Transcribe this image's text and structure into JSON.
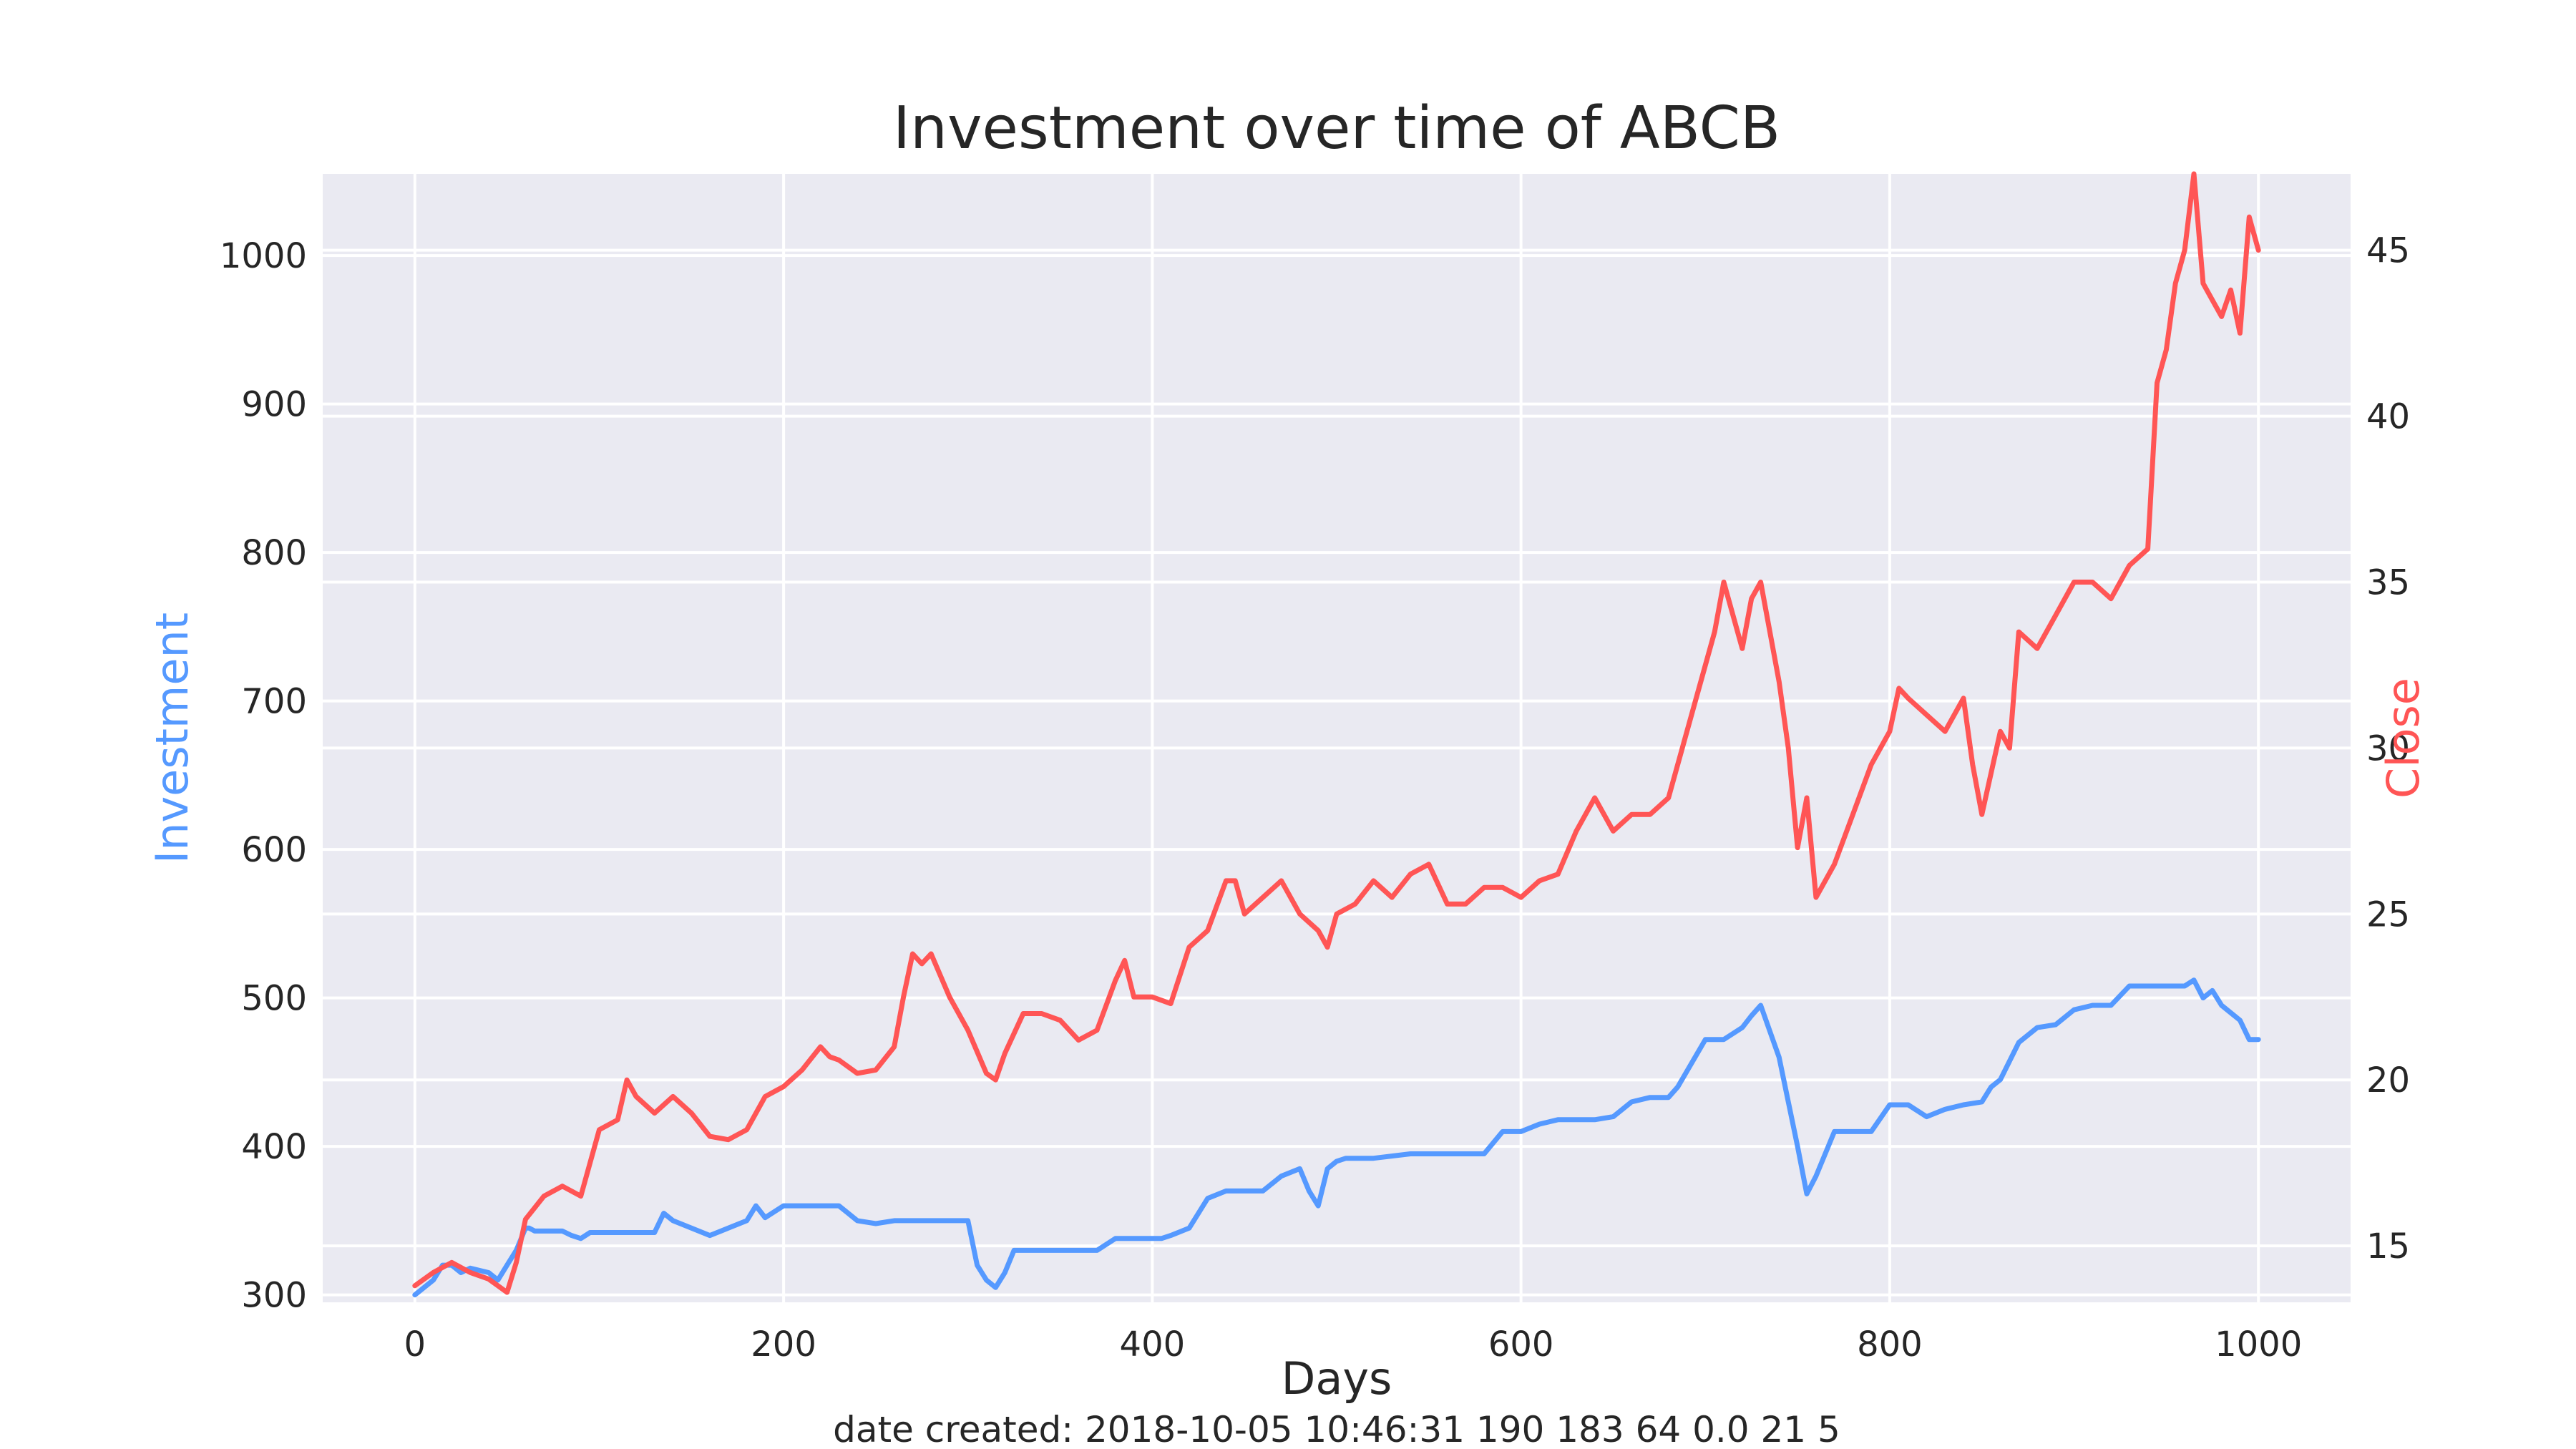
{
  "chart_data": {
    "type": "line",
    "title": "Investment over time of ABCB",
    "xlabel": "Days",
    "ylabel_left": "Investment",
    "ylabel_right": "Close",
    "footer": "date created: 2018-10-05 10:46:31 190 183 64 0.0 21 5",
    "xlim": [
      -50,
      1050
    ],
    "ylim_left": [
      295,
      1055
    ],
    "ylim_right": [
      13.3,
      47.3
    ],
    "x_ticks": [
      0,
      200,
      400,
      600,
      800,
      1000
    ],
    "x_tick_labels": [
      "0",
      "200",
      "400",
      "600",
      "800",
      "1000"
    ],
    "y_left_ticks": [
      300,
      400,
      500,
      600,
      700,
      800,
      900,
      1000
    ],
    "y_left_tick_labels": [
      "300",
      "400",
      "500",
      "600",
      "700",
      "800",
      "900",
      "1000"
    ],
    "y_right_ticks": [
      15,
      20,
      25,
      30,
      35,
      40,
      45
    ],
    "y_right_tick_labels": [
      "15",
      "20",
      "25",
      "30",
      "35",
      "40",
      "45"
    ],
    "grid": true,
    "colors": {
      "investment": "#5599ff",
      "close": "#ff5555",
      "background": "#eaeaf2",
      "grid": "#ffffff"
    },
    "series": [
      {
        "name": "Investment",
        "axis": "left",
        "x": [
          0,
          10,
          15,
          20,
          25,
          30,
          40,
          45,
          50,
          55,
          60,
          62,
          65,
          80,
          85,
          90,
          95,
          100,
          130,
          135,
          140,
          150,
          160,
          170,
          180,
          185,
          190,
          200,
          230,
          235,
          240,
          250,
          260,
          270,
          300,
          305,
          310,
          315,
          320,
          325,
          340,
          370,
          380,
          390,
          400,
          405,
          410,
          420,
          430,
          440,
          450,
          460,
          470,
          480,
          485,
          490,
          495,
          500,
          505,
          520,
          540,
          560,
          570,
          580,
          590,
          600,
          610,
          620,
          640,
          650,
          660,
          670,
          680,
          685,
          700,
          710,
          720,
          725,
          730,
          740,
          745,
          750,
          755,
          760,
          770,
          790,
          800,
          810,
          820,
          830,
          840,
          850,
          855,
          860,
          870,
          880,
          890,
          900,
          910,
          920,
          930,
          940,
          950,
          960,
          965,
          970,
          975,
          980,
          985,
          990,
          995,
          1000
        ],
        "values": [
          300,
          310,
          320,
          320,
          315,
          318,
          315,
          310,
          320,
          330,
          345,
          345,
          343,
          343,
          340,
          338,
          342,
          342,
          342,
          355,
          350,
          345,
          340,
          345,
          350,
          360,
          352,
          360,
          360,
          355,
          350,
          348,
          350,
          350,
          350,
          320,
          310,
          305,
          315,
          330,
          330,
          330,
          338,
          338,
          338,
          338,
          340,
          345,
          365,
          370,
          370,
          370,
          380,
          385,
          370,
          360,
          385,
          390,
          392,
          392,
          395,
          395,
          395,
          395,
          410,
          410,
          415,
          418,
          418,
          420,
          430,
          433,
          433,
          440,
          472,
          472,
          480,
          488,
          495,
          460,
          430,
          400,
          368,
          380,
          410,
          410,
          428,
          428,
          420,
          425,
          428,
          430,
          440,
          445,
          470,
          480,
          482,
          492,
          495,
          495,
          508,
          508,
          508,
          508,
          512,
          500,
          505,
          495,
          490,
          485,
          472,
          472
        ]
      },
      {
        "name": "Close",
        "axis": "right",
        "x": [
          0,
          10,
          20,
          30,
          40,
          45,
          50,
          55,
          60,
          70,
          80,
          90,
          95,
          100,
          110,
          115,
          120,
          130,
          140,
          150,
          160,
          170,
          180,
          190,
          200,
          210,
          220,
          225,
          230,
          240,
          250,
          260,
          265,
          270,
          275,
          280,
          290,
          300,
          310,
          315,
          320,
          330,
          340,
          350,
          360,
          370,
          380,
          385,
          390,
          400,
          410,
          420,
          430,
          440,
          445,
          450,
          460,
          470,
          480,
          490,
          495,
          500,
          510,
          520,
          530,
          540,
          550,
          560,
          570,
          580,
          590,
          600,
          610,
          620,
          630,
          640,
          650,
          660,
          670,
          680,
          690,
          700,
          705,
          710,
          715,
          720,
          725,
          730,
          740,
          745,
          750,
          755,
          760,
          770,
          780,
          790,
          800,
          805,
          810,
          820,
          830,
          840,
          845,
          850,
          860,
          865,
          870,
          880,
          890,
          900,
          910,
          920,
          930,
          940,
          945,
          950,
          955,
          960,
          965,
          970,
          975,
          980,
          985,
          990,
          995,
          1000
        ],
        "values": [
          13.8,
          14.2,
          14.5,
          14.2,
          14.0,
          13.8,
          13.6,
          14.5,
          15.8,
          16.5,
          16.8,
          16.5,
          17.5,
          18.5,
          18.8,
          20.0,
          19.5,
          19.0,
          19.5,
          19.0,
          18.3,
          18.2,
          18.5,
          19.5,
          19.8,
          20.3,
          21.0,
          20.7,
          20.6,
          20.2,
          20.3,
          21.0,
          22.5,
          23.8,
          23.5,
          23.8,
          22.5,
          21.5,
          20.2,
          20.0,
          20.8,
          22.0,
          22.0,
          21.8,
          21.2,
          21.5,
          23.0,
          23.6,
          22.5,
          22.5,
          22.3,
          24.0,
          24.5,
          26.0,
          26.0,
          25.0,
          25.5,
          26.0,
          25.0,
          24.5,
          24.0,
          25.0,
          25.3,
          26.0,
          25.5,
          26.2,
          26.5,
          25.3,
          25.3,
          25.8,
          25.8,
          25.5,
          26.0,
          26.2,
          27.5,
          28.5,
          27.5,
          28.0,
          28.0,
          28.5,
          30.5,
          32.5,
          33.5,
          35.0,
          34.0,
          33.0,
          34.5,
          35.0,
          32.0,
          30.0,
          27.0,
          28.5,
          25.5,
          26.5,
          28.0,
          29.5,
          30.5,
          31.8,
          31.5,
          31.0,
          30.5,
          31.5,
          29.5,
          28.0,
          30.5,
          30.0,
          33.5,
          33.0,
          34.0,
          35.0,
          35.0,
          34.5,
          35.5,
          36.0,
          41.0,
          42.0,
          44.0,
          45.0,
          47.3,
          44.0,
          43.5,
          43.0,
          43.8,
          42.5,
          46.0,
          45.0
        ]
      }
    ]
  }
}
